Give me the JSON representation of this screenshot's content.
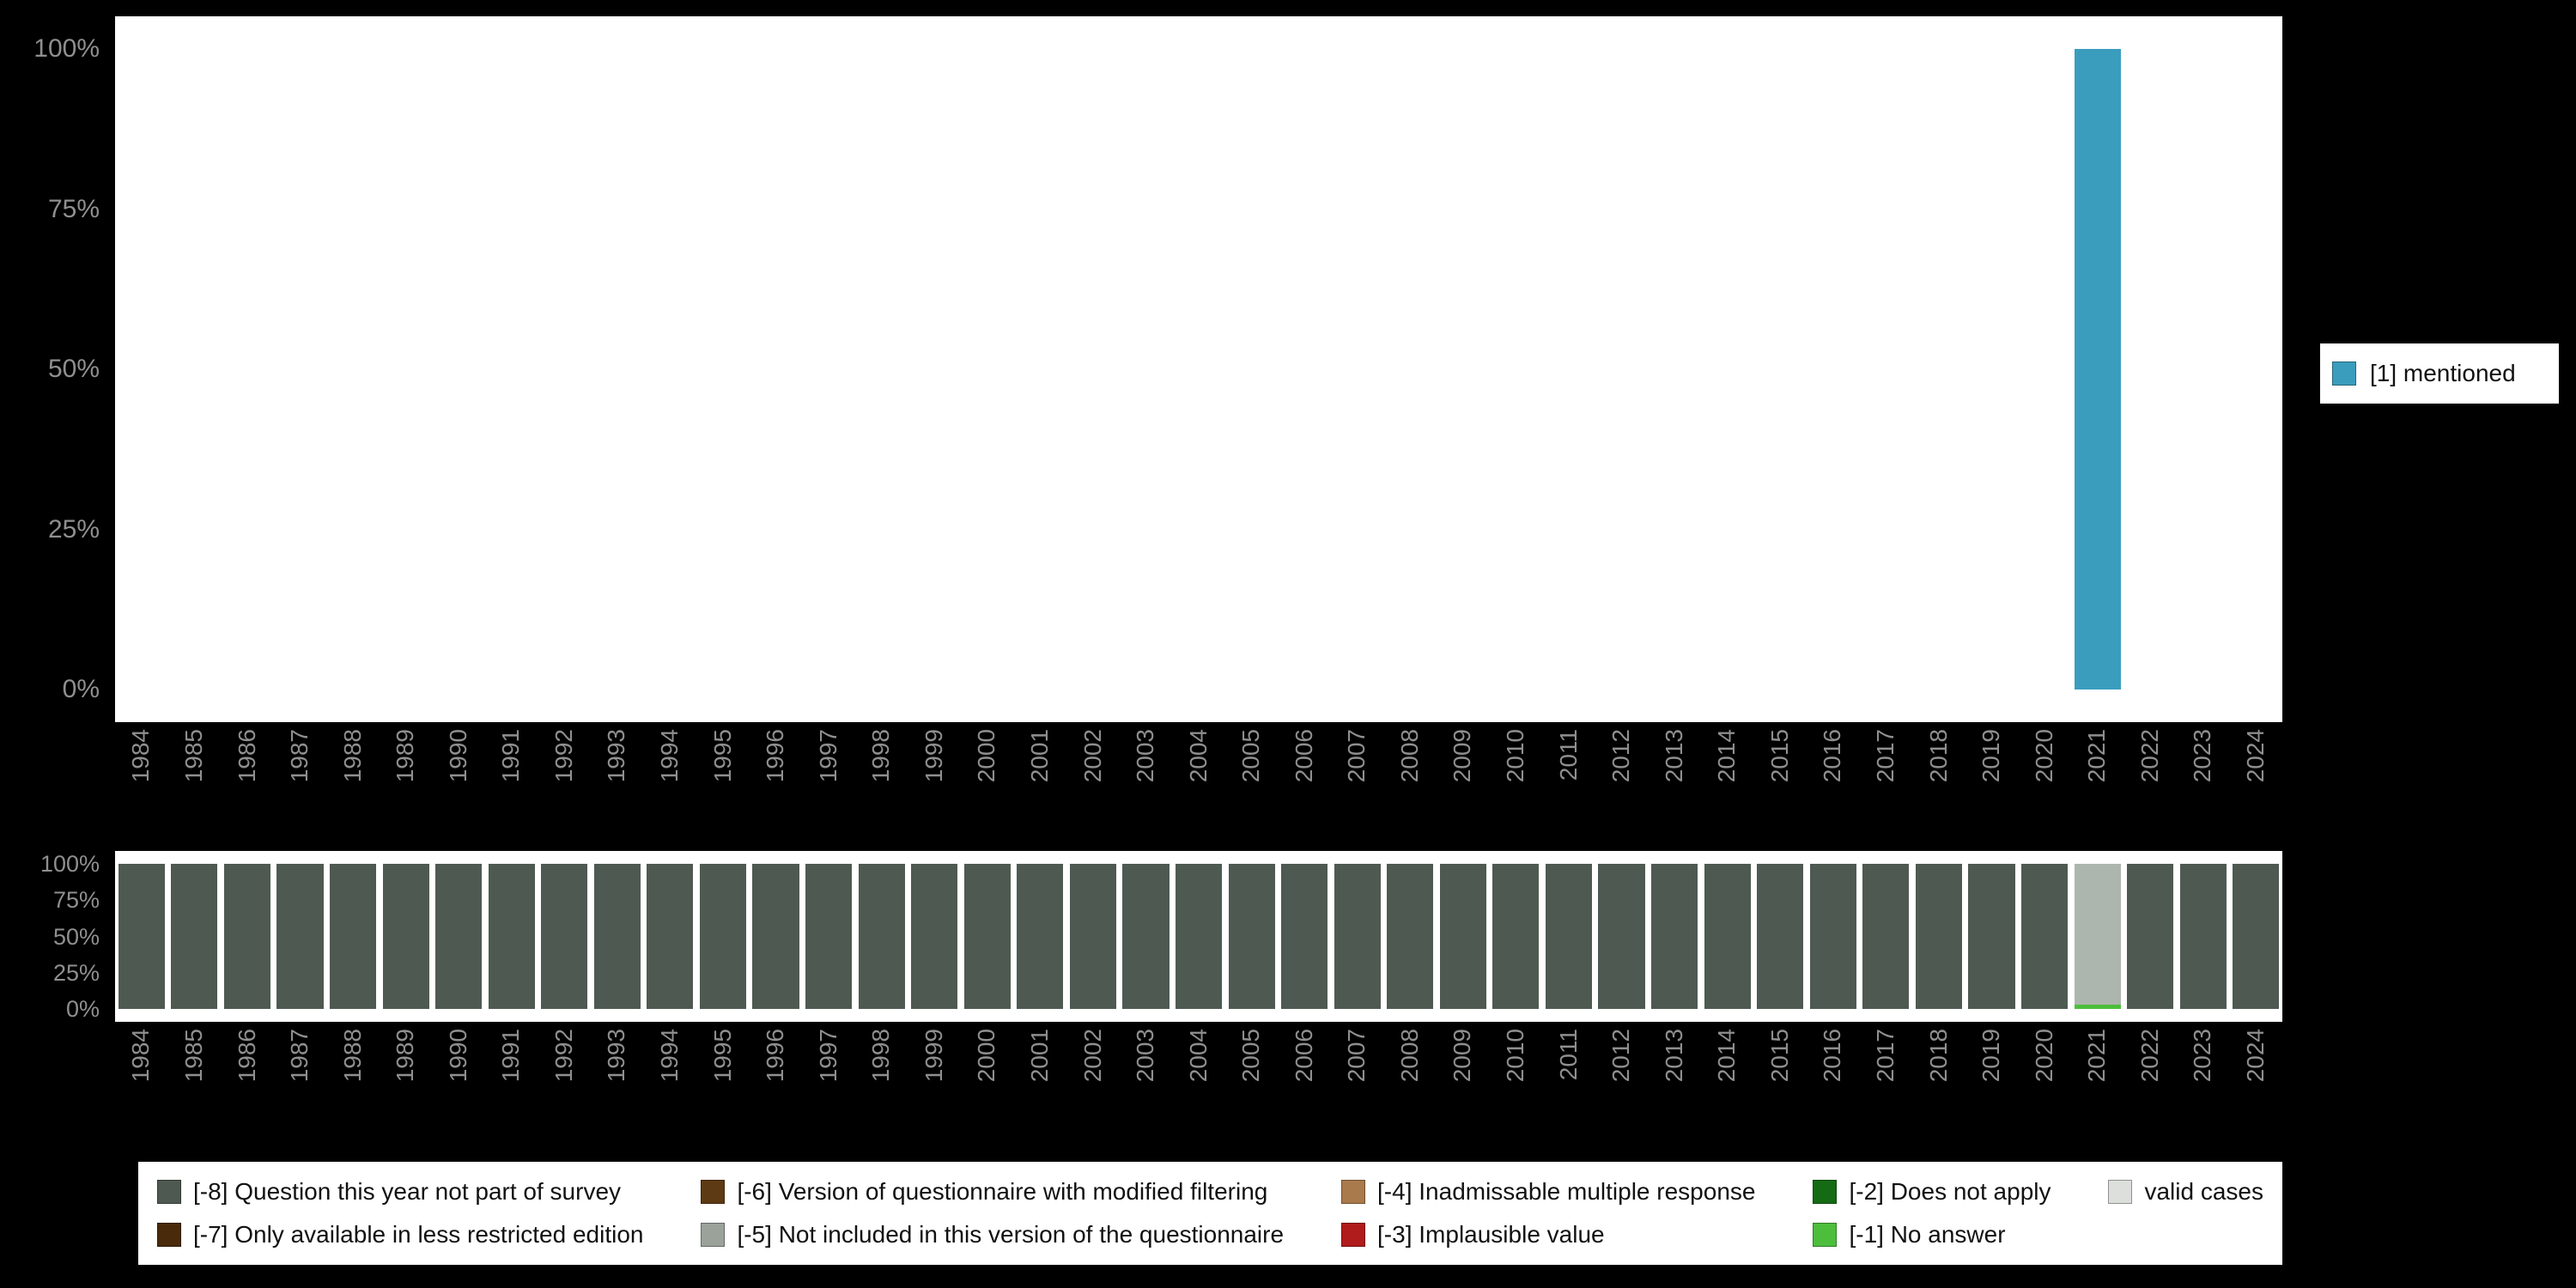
{
  "colors": {
    "background": "#000000",
    "axis_text": "#8f8f8f",
    "plot_background": "#ffffff"
  },
  "top_chart": {
    "y_ticks": [
      "100%",
      "75%",
      "50%",
      "25%",
      "0%"
    ]
  },
  "bottom_chart": {
    "y_ticks": [
      "100%",
      "75%",
      "50%",
      "25%",
      "0%"
    ]
  },
  "legend_items": [
    {
      "label": "[-8] Question this year not part of survey",
      "color": "#4e5a51"
    },
    {
      "label": "[-7] Only available in less restricted edition",
      "color": "#492a0b"
    },
    {
      "label": "[-6] Version of questionnaire with modified filtering",
      "color": "#5d3a13"
    },
    {
      "label": "[-5] Not included in this version of the questionnaire",
      "color": "#9aa29a"
    },
    {
      "label": "[-4] Inadmissable multiple response",
      "color": "#a97a4b"
    },
    {
      "label": "[-3] Implausible value",
      "color": "#b01b1b"
    },
    {
      "label": "[-2] Does not apply",
      "color": "#146b14"
    },
    {
      "label": "[-1] No answer",
      "color": "#4cbe3c"
    },
    {
      "label": "valid cases",
      "color": "#dcdfdc"
    }
  ],
  "chart_data": [
    {
      "type": "bar",
      "title": "",
      "xlabel": "",
      "ylabel": "",
      "ylim": [
        0,
        100
      ],
      "y_ticks": [
        "100%",
        "75%",
        "50%",
        "25%",
        "0%"
      ],
      "legend_position": "right",
      "grid": false,
      "x": [
        "1984",
        "1985",
        "1986",
        "1987",
        "1988",
        "1989",
        "1990",
        "1991",
        "1992",
        "1993",
        "1994",
        "1995",
        "1996",
        "1997",
        "1998",
        "1999",
        "2000",
        "2001",
        "2002",
        "2003",
        "2004",
        "2005",
        "2006",
        "2007",
        "2008",
        "2009",
        "2010",
        "2011",
        "2012",
        "2013",
        "2014",
        "2015",
        "2016",
        "2017",
        "2018",
        "2019",
        "2020",
        "2021",
        "2022",
        "2023",
        "2024"
      ],
      "series": [
        {
          "name": "[1] mentioned",
          "color": "#3a9dbe",
          "values": [
            0,
            0,
            0,
            0,
            0,
            0,
            0,
            0,
            0,
            0,
            0,
            0,
            0,
            0,
            0,
            0,
            0,
            0,
            0,
            0,
            0,
            0,
            0,
            0,
            0,
            0,
            0,
            0,
            0,
            0,
            0,
            0,
            0,
            0,
            0,
            0,
            0,
            100,
            0,
            0,
            0
          ]
        }
      ]
    },
    {
      "type": "stacked-bar",
      "title": "",
      "xlabel": "",
      "ylabel": "",
      "ylim": [
        0,
        100
      ],
      "y_ticks": [
        "100%",
        "75%",
        "50%",
        "25%",
        "0%"
      ],
      "legend_position": "bottom",
      "grid": false,
      "x": [
        "1984",
        "1985",
        "1986",
        "1987",
        "1988",
        "1989",
        "1990",
        "1991",
        "1992",
        "1993",
        "1994",
        "1995",
        "1996",
        "1997",
        "1998",
        "1999",
        "2000",
        "2001",
        "2002",
        "2003",
        "2004",
        "2005",
        "2006",
        "2007",
        "2008",
        "2009",
        "2010",
        "2011",
        "2012",
        "2013",
        "2014",
        "2015",
        "2016",
        "2017",
        "2018",
        "2019",
        "2020",
        "2021",
        "2022",
        "2023",
        "2024"
      ],
      "series": [
        {
          "name": "[-8] Question this year not part of survey",
          "color": "#4e5a51",
          "values": [
            100,
            100,
            100,
            100,
            100,
            100,
            100,
            100,
            100,
            100,
            100,
            100,
            100,
            100,
            100,
            100,
            100,
            100,
            100,
            100,
            100,
            100,
            100,
            100,
            100,
            100,
            100,
            100,
            100,
            100,
            100,
            100,
            100,
            100,
            100,
            100,
            100,
            0,
            100,
            100,
            100
          ]
        },
        {
          "name": "[-1] No answer",
          "color": "#4cbe3c",
          "values": [
            0,
            0,
            0,
            0,
            0,
            0,
            0,
            0,
            0,
            0,
            0,
            0,
            0,
            0,
            0,
            0,
            0,
            0,
            0,
            0,
            0,
            0,
            0,
            0,
            0,
            0,
            0,
            0,
            0,
            0,
            0,
            0,
            0,
            0,
            0,
            0,
            0,
            3,
            0,
            0,
            0
          ]
        },
        {
          "name": "valid cases",
          "color": "#adb6ae",
          "values": [
            0,
            0,
            0,
            0,
            0,
            0,
            0,
            0,
            0,
            0,
            0,
            0,
            0,
            0,
            0,
            0,
            0,
            0,
            0,
            0,
            0,
            0,
            0,
            0,
            0,
            0,
            0,
            0,
            0,
            0,
            0,
            0,
            0,
            0,
            0,
            0,
            0,
            97,
            0,
            0,
            0
          ]
        }
      ]
    }
  ]
}
